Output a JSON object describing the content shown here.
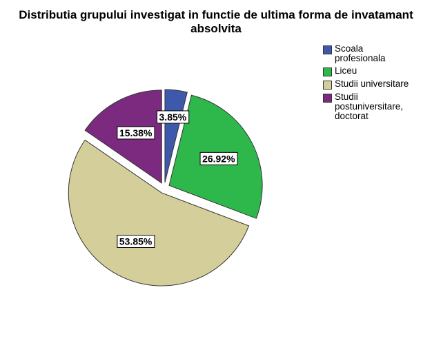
{
  "chart_data": {
    "type": "pie",
    "title": "Distributia grupului investigat in functie de ultima forma de invatamant absolvita",
    "categories": [
      "Scoala profesionala",
      "Liceu",
      "Studii universitare",
      "Studii postuniversitare, doctorat"
    ],
    "values": [
      3.85,
      26.92,
      53.85,
      15.38
    ],
    "value_labels": [
      "3.85%",
      "26.92%",
      "53.85%",
      "15.38%"
    ],
    "colors": [
      "#3e58ac",
      "#2eb84b",
      "#d4ce9a",
      "#7c2a80"
    ],
    "legend": "top-right"
  }
}
